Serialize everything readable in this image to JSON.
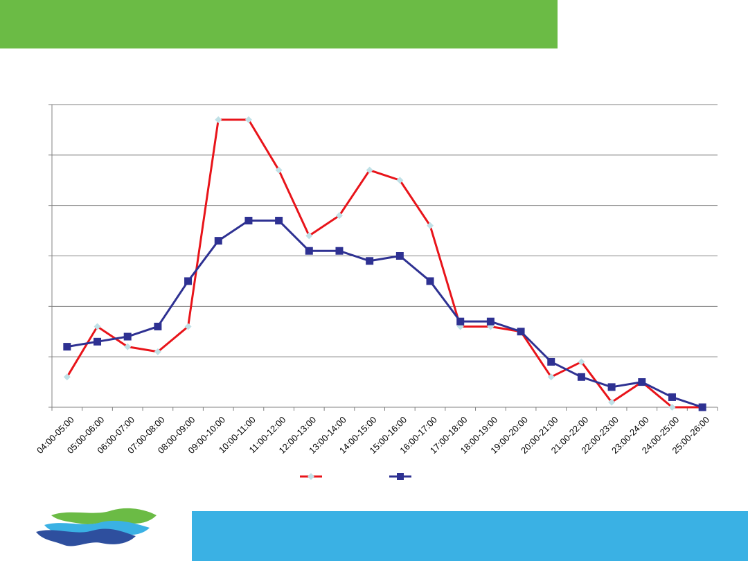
{
  "colors": {
    "top_band": "#6BBB45",
    "bottom_band": "#3AB1E4",
    "series_1": "#E8141A",
    "series_1_marker": "#BFE0E6",
    "series_2": "#2E3192",
    "grid": "#808080",
    "logo_green": "#6BBB45",
    "logo_cyan": "#3AB1E4",
    "logo_navy": "#2E4F9E"
  },
  "logo": {
    "icon": "wave-logo-icon"
  },
  "chart_data": {
    "type": "line",
    "title": "",
    "xlabel": "",
    "ylabel": "",
    "categories": [
      "04:00-05:00",
      "05:00-06:00",
      "06:00-07:00",
      "07:00-08:00",
      "08:00-09:00",
      "09:00-10:00",
      "10:00-11:00",
      "11:00-12:00",
      "12:00-13:00",
      "13:00-14:00",
      "14:00-15:00",
      "15:00-16:00",
      "16:00-17:00",
      "17:00-18:00",
      "18:00-19:00",
      "19:00-20:00",
      "20:00-21:00",
      "21:00-22:00",
      "22:00-23:00",
      "23:00-24:00",
      "24:00-25:00",
      "25:00-26:00"
    ],
    "ylim": [
      0,
      30
    ],
    "y_gridlines": [
      0,
      5,
      10,
      15,
      20,
      25,
      30
    ],
    "grid": true,
    "legend": "bottom",
    "series": [
      {
        "name": "",
        "marker": "diamond",
        "values": [
          3,
          8,
          6,
          5.5,
          8,
          28.5,
          28.5,
          23.5,
          17,
          19,
          23.5,
          22.5,
          18,
          8,
          8,
          7.5,
          3,
          4.5,
          0.5,
          2.5,
          0,
          0
        ]
      },
      {
        "name": "",
        "marker": "square",
        "values": [
          6,
          6.5,
          7,
          8,
          12.5,
          16.5,
          18.5,
          18.5,
          15.5,
          15.5,
          14.5,
          15,
          12.5,
          8.5,
          8.5,
          7.5,
          4.5,
          3,
          2,
          2.5,
          1,
          0
        ]
      }
    ]
  }
}
